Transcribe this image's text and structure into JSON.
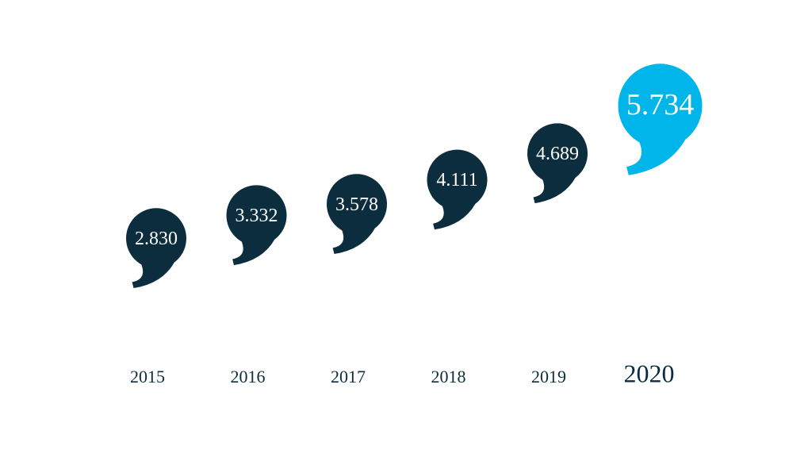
{
  "chart_data": {
    "type": "comma",
    "categories": [
      "2015",
      "2016",
      "2017",
      "2018",
      "2019",
      "2020"
    ],
    "values": [
      2830,
      3332,
      3578,
      4111,
      4689,
      5734
    ],
    "value_labels": [
      "2.830",
      "3.332",
      "3.578",
      "4.111",
      "4.689",
      "5.734"
    ],
    "colors": [
      "#0c2d3d",
      "#0c2d3d",
      "#0c2d3d",
      "#0c2d3d",
      "#0c2d3d",
      "#00b5e9"
    ]
  }
}
